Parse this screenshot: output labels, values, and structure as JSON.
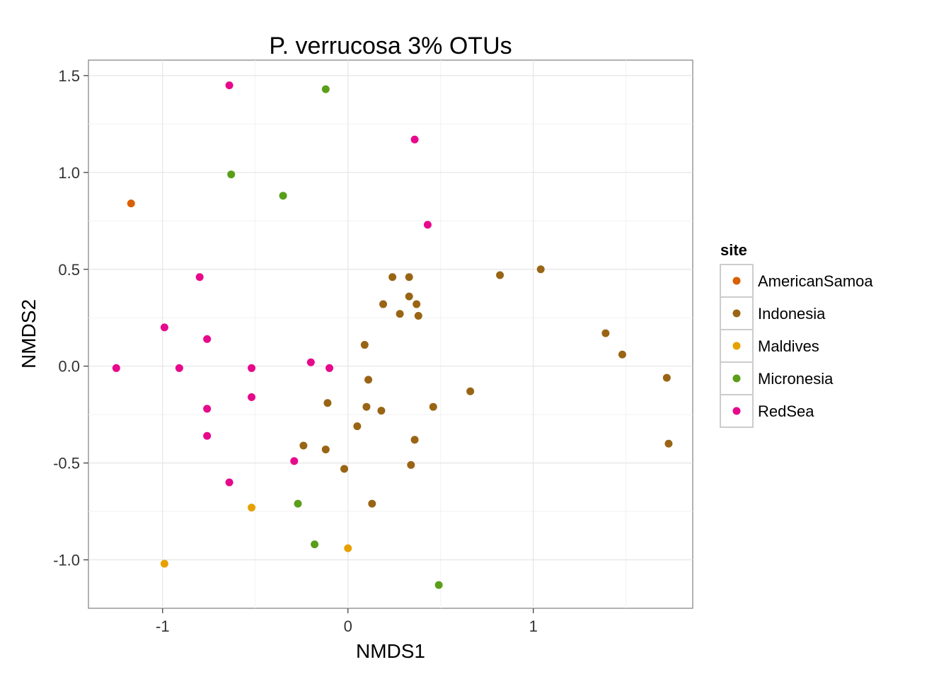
{
  "chart_data": {
    "type": "scatter",
    "title": "P. verrucosa 3% OTUs",
    "xlabel": "NMDS1",
    "ylabel": "NMDS2",
    "xlim": [
      -1.4,
      1.86
    ],
    "ylim": [
      -1.25,
      1.58
    ],
    "x_ticks": [
      {
        "value": -1,
        "label": "-1"
      },
      {
        "value": 0,
        "label": "0"
      },
      {
        "value": 1,
        "label": "1"
      }
    ],
    "y_ticks": [
      {
        "value": -1.0,
        "label": "-1.0"
      },
      {
        "value": -0.5,
        "label": "-0.5"
      },
      {
        "value": 0.0,
        "label": "0.0"
      },
      {
        "value": 0.5,
        "label": "0.5"
      },
      {
        "value": 1.0,
        "label": "1.0"
      },
      {
        "value": 1.5,
        "label": "1.5"
      }
    ],
    "grid": true,
    "background": "#ffffff",
    "legend": {
      "title": "site",
      "position": "right"
    },
    "series": [
      {
        "name": "AmericanSamoa",
        "color": "#d95f02",
        "points": [
          [
            -1.17,
            0.84
          ]
        ]
      },
      {
        "name": "Indonesia",
        "color": "#996515",
        "points": [
          [
            0.24,
            0.46
          ],
          [
            0.33,
            0.46
          ],
          [
            0.33,
            0.36
          ],
          [
            0.19,
            0.32
          ],
          [
            0.37,
            0.32
          ],
          [
            0.28,
            0.27
          ],
          [
            0.38,
            0.26
          ],
          [
            0.09,
            0.11
          ],
          [
            0.11,
            -0.07
          ],
          [
            -0.11,
            -0.19
          ],
          [
            0.1,
            -0.21
          ],
          [
            0.18,
            -0.23
          ],
          [
            0.46,
            -0.21
          ],
          [
            0.66,
            -0.13
          ],
          [
            0.05,
            -0.31
          ],
          [
            -0.24,
            -0.41
          ],
          [
            -0.12,
            -0.43
          ],
          [
            0.36,
            -0.38
          ],
          [
            0.34,
            -0.51
          ],
          [
            -0.02,
            -0.53
          ],
          [
            0.13,
            -0.71
          ],
          [
            0.82,
            0.47
          ],
          [
            1.04,
            0.5
          ],
          [
            1.39,
            0.17
          ],
          [
            1.48,
            0.06
          ],
          [
            1.72,
            -0.06
          ],
          [
            1.73,
            -0.4
          ]
        ]
      },
      {
        "name": "Maldives",
        "color": "#e6a100",
        "points": [
          [
            -0.52,
            -0.73
          ],
          [
            0.0,
            -0.94
          ],
          [
            -0.99,
            -1.02
          ]
        ]
      },
      {
        "name": "Micronesia",
        "color": "#5a9e1a",
        "points": [
          [
            -0.12,
            1.43
          ],
          [
            -0.63,
            0.99
          ],
          [
            -0.35,
            0.88
          ],
          [
            -0.27,
            -0.71
          ],
          [
            -0.18,
            -0.92
          ],
          [
            0.49,
            -1.13
          ]
        ]
      },
      {
        "name": "RedSea",
        "color": "#e7098b",
        "points": [
          [
            -0.64,
            1.45
          ],
          [
            0.36,
            1.17
          ],
          [
            0.43,
            0.73
          ],
          [
            -0.8,
            0.46
          ],
          [
            -0.99,
            0.2
          ],
          [
            -0.76,
            0.14
          ],
          [
            -1.25,
            -0.01
          ],
          [
            -0.91,
            -0.01
          ],
          [
            -0.52,
            -0.01
          ],
          [
            -0.2,
            0.02
          ],
          [
            -0.1,
            -0.01
          ],
          [
            -0.52,
            -0.16
          ],
          [
            -0.76,
            -0.22
          ],
          [
            -0.76,
            -0.36
          ],
          [
            -0.29,
            -0.49
          ],
          [
            -0.64,
            -0.6
          ]
        ]
      }
    ]
  }
}
